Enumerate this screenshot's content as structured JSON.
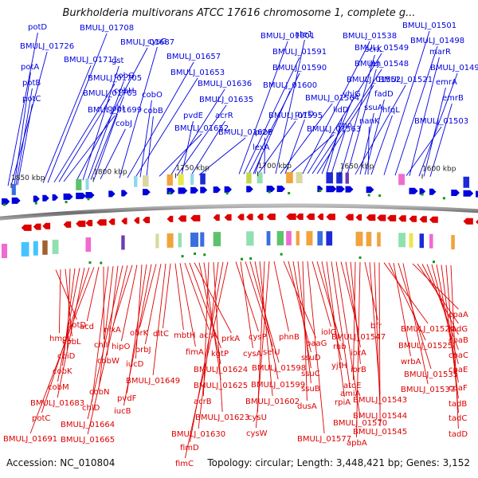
{
  "title": "Burkholderia multivorans ATCC 17616 chromosome 1, complete g...",
  "accession_label": "Accession: NC_010804",
  "stats_label": "Topology: circular; Length: 3,448,421 bp; Genes: 3,152",
  "colors": {
    "top": "#0000dd",
    "bottom": "#dd0000",
    "backbone": "#777777",
    "tick": "#222222",
    "rna": "#119911"
  },
  "ticks": [
    {
      "label": "1850 kbp",
      "pos": 1850
    },
    {
      "label": "1800 kbp",
      "pos": 1800
    },
    {
      "label": "1750 kbp",
      "pos": 1750
    },
    {
      "label": "1700 kbp",
      "pos": 1700
    },
    {
      "label": "1650 kbp",
      "pos": 1650
    },
    {
      "label": "1600 kbp",
      "pos": 1600
    }
  ],
  "top_labels": [
    {
      "text": "potD"
    },
    {
      "text": "BMULJ_01726"
    },
    {
      "text": "potA"
    },
    {
      "text": "potB"
    },
    {
      "text": "potC"
    },
    {
      "text": "BMULJ_01708"
    },
    {
      "text": "BMULJ_01711"
    },
    {
      "text": "BMULJ_01705"
    },
    {
      "text": "BMULJ_01703"
    },
    {
      "text": "BMULJ_01699"
    },
    {
      "text": "BMULJ_01687"
    },
    {
      "text": "gst"
    },
    {
      "text": "cobG"
    },
    {
      "text": "cobH"
    },
    {
      "text": "cobI"
    },
    {
      "text": "cobJ"
    },
    {
      "text": "cysG"
    },
    {
      "text": "BMULJ_01657"
    },
    {
      "text": "BMULJ_01653"
    },
    {
      "text": "cobO"
    },
    {
      "text": "cobB"
    },
    {
      "text": "BMULJ_01652"
    },
    {
      "text": "BMULJ_01636"
    },
    {
      "text": "BMULJ_01635"
    },
    {
      "text": "pvdE"
    },
    {
      "text": "acrR"
    },
    {
      "text": "BMULJ_01626"
    },
    {
      "text": "BMULJ_01601"
    },
    {
      "text": "BMULJ_01591"
    },
    {
      "text": "BMULJ_01590"
    },
    {
      "text": "BMULJ_01600"
    },
    {
      "text": "BMULJ_01595"
    },
    {
      "text": "proP"
    },
    {
      "text": "lexA"
    },
    {
      "text": "ate1"
    },
    {
      "text": "BMULJ_01564"
    },
    {
      "text": "pyrD"
    },
    {
      "text": "BMULJ_01563"
    },
    {
      "text": "BMULJ_01538"
    },
    {
      "text": "BMULJ_01549"
    },
    {
      "text": "BMULJ_01548"
    },
    {
      "text": "BMULJ_01552"
    },
    {
      "text": "yhjG"
    },
    {
      "text": "lldD"
    },
    {
      "text": "cpo"
    },
    {
      "text": "scrK"
    },
    {
      "text": "jen"
    },
    {
      "text": "BMULJ_01521"
    },
    {
      "text": "ssuA"
    },
    {
      "text": "nanK"
    },
    {
      "text": "BMULJ_01501"
    },
    {
      "text": "BMULJ_01498"
    },
    {
      "text": "marR"
    },
    {
      "text": "BMULJ_01490"
    },
    {
      "text": "emrA"
    },
    {
      "text": "emrB"
    },
    {
      "text": "fadD"
    },
    {
      "text": "hfqL"
    },
    {
      "text": "BMULJ_01503"
    }
  ],
  "bottom_labels": [
    {
      "text": "potD"
    },
    {
      "text": "hmgL"
    },
    {
      "text": "cobL"
    },
    {
      "text": "cbiD"
    },
    {
      "text": "cobK"
    },
    {
      "text": "cobM"
    },
    {
      "text": "BMULJ_01683"
    },
    {
      "text": "potC"
    },
    {
      "text": "BMULJ_01691"
    },
    {
      "text": "acd"
    },
    {
      "text": "chlI"
    },
    {
      "text": "chlD"
    },
    {
      "text": "cobN"
    },
    {
      "text": "cobW"
    },
    {
      "text": "BMULJ_01664"
    },
    {
      "text": "BMULJ_01665"
    },
    {
      "text": "nixA"
    },
    {
      "text": "hipO"
    },
    {
      "text": "iucD"
    },
    {
      "text": "pvdF"
    },
    {
      "text": "iucB"
    },
    {
      "text": "obrK"
    },
    {
      "text": "orbJ"
    },
    {
      "text": "BMULJ_01649"
    },
    {
      "text": "dltC"
    },
    {
      "text": "mbtH"
    },
    {
      "text": "fimA"
    },
    {
      "text": "acrA"
    },
    {
      "text": "kgtP"
    },
    {
      "text": "prkA"
    },
    {
      "text": "BMULJ_01624"
    },
    {
      "text": "BMULJ_01625"
    },
    {
      "text": "acrB"
    },
    {
      "text": "BMULJ_01623"
    },
    {
      "text": "BMULJ_01630"
    },
    {
      "text": "fimD"
    },
    {
      "text": "fimC"
    },
    {
      "text": "cysP"
    },
    {
      "text": "cysA"
    },
    {
      "text": "selU"
    },
    {
      "text": "BMULJ_01598"
    },
    {
      "text": "BMULJ_01599"
    },
    {
      "text": "BMULJ_01602"
    },
    {
      "text": "cysU"
    },
    {
      "text": "cysW"
    },
    {
      "text": "phnB"
    },
    {
      "text": "paaG"
    },
    {
      "text": "ssuD"
    },
    {
      "text": "ssuC"
    },
    {
      "text": "ssuB"
    },
    {
      "text": "dusA"
    },
    {
      "text": "BMULJ_01577"
    },
    {
      "text": "iolG"
    },
    {
      "text": "rnb"
    },
    {
      "text": "yjfH"
    },
    {
      "text": "rpiA"
    },
    {
      "text": "amiA"
    },
    {
      "text": "BMULJ_01570"
    },
    {
      "text": "BMULJ_01547"
    },
    {
      "text": "iorA"
    },
    {
      "text": "iorB"
    },
    {
      "text": "atoE"
    },
    {
      "text": "apbA"
    },
    {
      "text": "bfr"
    },
    {
      "text": "BMULJ_01543"
    },
    {
      "text": "BMULJ_01544"
    },
    {
      "text": "BMULJ_01545"
    },
    {
      "text": "BMULJ_01524"
    },
    {
      "text": "BMULJ_01525"
    },
    {
      "text": "wrbA"
    },
    {
      "text": "BMULJ_01535"
    },
    {
      "text": "BMULJ_01537"
    },
    {
      "text": "cpaA"
    },
    {
      "text": "tadG"
    },
    {
      "text": "cpaB"
    },
    {
      "text": "cpaC"
    },
    {
      "text": "cpaE"
    },
    {
      "text": "cpaF"
    },
    {
      "text": "tadB"
    },
    {
      "text": "tadC"
    },
    {
      "text": "tadD"
    }
  ]
}
